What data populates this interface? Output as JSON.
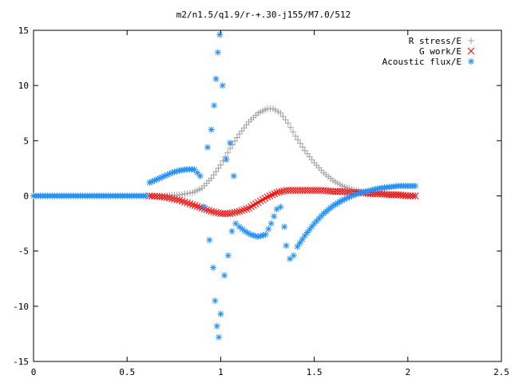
{
  "chart_data": {
    "type": "scatter",
    "title": "m2/n1.5/q1.9/r-+.30-j155/M7.0/512",
    "xlabel": "",
    "ylabel": "",
    "xlim": [
      0,
      2.5
    ],
    "ylim": [
      -15,
      15
    ],
    "x_ticks": [
      0,
      0.5,
      1,
      1.5,
      2,
      2.5
    ],
    "x_tick_labels": [
      "0",
      "0.5",
      "1",
      "1.5",
      "2",
      "2.5"
    ],
    "y_ticks": [
      -15,
      -10,
      -5,
      0,
      5,
      10,
      15
    ],
    "y_tick_labels": [
      "-15",
      "-10",
      "-5",
      "0",
      "5",
      "10",
      "15"
    ],
    "grid": false,
    "legend_position": "top-right",
    "series": [
      {
        "name": "R stress/E",
        "marker": "plus",
        "color": "#a0a0a0",
        "x": [
          0.62,
          0.7,
          0.78,
          0.85,
          0.9,
          0.95,
          1.0,
          1.05,
          1.1,
          1.15,
          1.2,
          1.25,
          1.28,
          1.32,
          1.36,
          1.4,
          1.45,
          1.5,
          1.55,
          1.6,
          1.65,
          1.7,
          1.75,
          1.8,
          1.85,
          1.9,
          1.95,
          2.0,
          2.04
        ],
        "y": [
          0.0,
          0.0,
          0.1,
          0.3,
          0.7,
          1.6,
          2.8,
          4.3,
          5.6,
          6.7,
          7.5,
          7.9,
          7.9,
          7.5,
          6.6,
          5.4,
          4.1,
          3.0,
          2.1,
          1.4,
          0.9,
          0.6,
          0.4,
          0.3,
          0.2,
          0.1,
          0.1,
          0.0,
          0.0
        ]
      },
      {
        "name": "G work/E",
        "marker": "cross",
        "color": "#ff0000",
        "x": [
          0.62,
          0.7,
          0.78,
          0.85,
          0.9,
          0.95,
          1.0,
          1.05,
          1.1,
          1.15,
          1.2,
          1.25,
          1.3,
          1.35,
          1.4,
          1.45,
          1.5,
          1.55,
          1.6,
          1.65,
          1.7,
          1.75,
          1.8,
          1.85,
          1.9,
          1.95,
          2.0,
          2.04
        ],
        "y": [
          0.0,
          -0.1,
          -0.4,
          -0.8,
          -1.1,
          -1.4,
          -1.6,
          -1.6,
          -1.4,
          -1.1,
          -0.6,
          -0.1,
          0.3,
          0.5,
          0.5,
          0.5,
          0.5,
          0.5,
          0.4,
          0.4,
          0.3,
          0.3,
          0.2,
          0.2,
          0.1,
          0.1,
          0.0,
          0.0
        ]
      },
      {
        "name": "Acoustic flux/E",
        "marker": "star",
        "color": "#1e90ff",
        "x": [
          0.0,
          0.1,
          0.2,
          0.3,
          0.4,
          0.5,
          0.6,
          0.62,
          0.66,
          0.7,
          0.74,
          0.78,
          0.82,
          0.86,
          0.89,
          0.91,
          0.93,
          0.94,
          0.95,
          0.96,
          0.965,
          0.97,
          0.975,
          0.98,
          0.985,
          0.99,
          0.995,
          1.0,
          1.01,
          1.02,
          1.03,
          1.04,
          1.05,
          1.06,
          1.07,
          1.08,
          1.1,
          1.13,
          1.16,
          1.2,
          1.24,
          1.27,
          1.3,
          1.32,
          1.34,
          1.35,
          1.37,
          1.39,
          1.41,
          1.45,
          1.5,
          1.55,
          1.6,
          1.65,
          1.7,
          1.75,
          1.8,
          1.85,
          1.9,
          1.95,
          2.0,
          2.04
        ],
        "y": [
          0.0,
          0.0,
          0.0,
          0.0,
          0.0,
          0.0,
          0.0,
          1.2,
          1.5,
          1.8,
          2.1,
          2.3,
          2.4,
          2.4,
          1.8,
          -1.0,
          4.4,
          -4.0,
          6.0,
          -6.5,
          8.2,
          -9.5,
          10.6,
          -11.8,
          13.0,
          -12.8,
          14.6,
          -10.7,
          10.0,
          -7.2,
          3.3,
          -5.4,
          4.8,
          -3.2,
          1.8,
          -2.5,
          -2.8,
          -3.2,
          -3.5,
          -3.7,
          -3.5,
          -2.5,
          -1.2,
          -1.0,
          -2.8,
          -4.5,
          -5.7,
          -5.4,
          -4.6,
          -3.6,
          -2.5,
          -1.6,
          -0.9,
          -0.4,
          0.0,
          0.3,
          0.5,
          0.7,
          0.8,
          0.9,
          0.9,
          0.9
        ]
      }
    ]
  }
}
